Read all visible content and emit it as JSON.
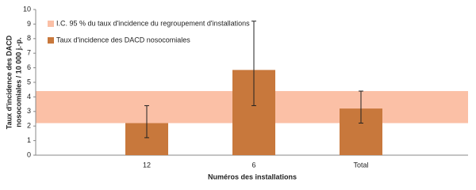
{
  "chart_data": {
    "type": "bar",
    "ylabel": [
      "Taux d'incidence des DACD",
      "nosocomiales / 10 000 j.-p."
    ],
    "xlabel": "Numéros des installations",
    "categories": [
      null,
      "12",
      "6",
      "Total",
      null
    ],
    "series": [
      {
        "name": "Taux d'incidence des DACD nosocomiales",
        "color": "#c8783c",
        "values": [
          null,
          2.2,
          5.85,
          3.2,
          null
        ],
        "ci_lower": [
          null,
          1.2,
          3.4,
          2.2,
          null
        ],
        "ci_upper": [
          null,
          3.4,
          9.2,
          4.4,
          null
        ]
      }
    ],
    "band": {
      "name": "I.C. 95 % du taux d'incidence du regroupement d'installations",
      "color": "#fbc0a6",
      "range": [
        2.2,
        4.4
      ]
    },
    "ylim": [
      0,
      10
    ],
    "yticks": [
      0,
      1,
      2,
      3,
      4,
      5,
      6,
      7,
      8,
      9,
      10
    ],
    "legend": "upper-left"
  }
}
